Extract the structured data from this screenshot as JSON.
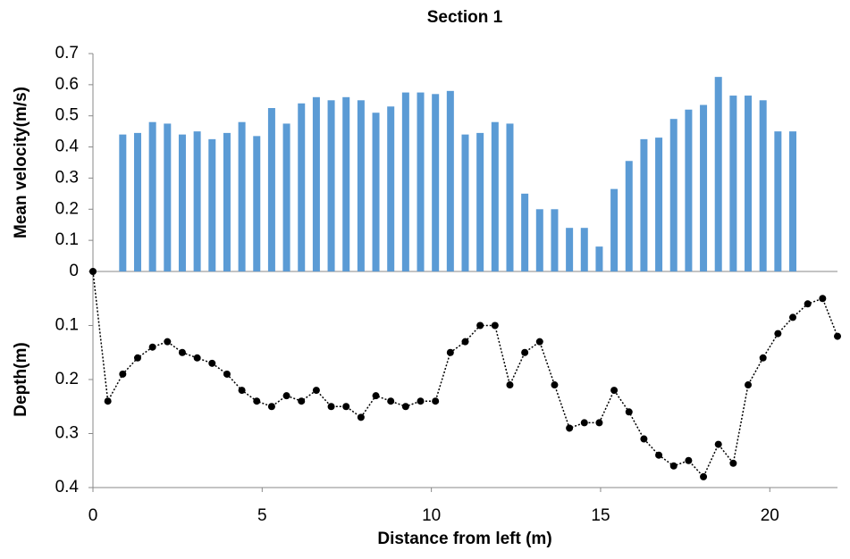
{
  "chart_data": [
    {
      "type": "bar",
      "title": "Section  1",
      "y_label": "Mean velocity(m/s)",
      "color": "#5b9bd5",
      "x": [
        0.88,
        1.32,
        1.76,
        2.2,
        2.64,
        3.08,
        3.52,
        3.96,
        4.4,
        4.84,
        5.28,
        5.72,
        6.16,
        6.6,
        7.04,
        7.48,
        7.92,
        8.36,
        8.8,
        9.24,
        9.68,
        10.12,
        10.56,
        11.0,
        11.44,
        11.88,
        12.32,
        12.76,
        13.2,
        13.64,
        14.08,
        14.52,
        14.96,
        15.4,
        15.84,
        16.28,
        16.72,
        17.16,
        17.6,
        18.04,
        18.48,
        18.92,
        19.36,
        19.8,
        20.24,
        20.68
      ],
      "values": [
        0.44,
        0.445,
        0.48,
        0.475,
        0.44,
        0.45,
        0.425,
        0.445,
        0.48,
        0.435,
        0.525,
        0.475,
        0.54,
        0.56,
        0.55,
        0.56,
        0.55,
        0.51,
        0.53,
        0.575,
        0.575,
        0.57,
        0.58,
        0.44,
        0.445,
        0.48,
        0.475,
        0.25,
        0.2,
        0.2,
        0.14,
        0.14,
        0.08,
        0.265,
        0.355,
        0.425,
        0.43,
        0.49,
        0.52,
        0.535,
        0.625,
        0.565,
        0.565,
        0.55,
        0.45,
        0.45
      ],
      "xlim": [
        0,
        22
      ],
      "ylim": [
        0,
        0.7
      ],
      "yticks": [
        0,
        0.1,
        0.2,
        0.3,
        0.4,
        0.5,
        0.6,
        0.7
      ]
    },
    {
      "type": "line",
      "y_label": "Depth(m)",
      "x_label": "Distance from left (m)",
      "color": "#000000",
      "inverted": true,
      "x": [
        0,
        0.44,
        0.88,
        1.32,
        1.76,
        2.2,
        2.64,
        3.08,
        3.52,
        3.96,
        4.4,
        4.84,
        5.28,
        5.72,
        6.16,
        6.6,
        7.04,
        7.48,
        7.92,
        8.36,
        8.8,
        9.24,
        9.68,
        10.12,
        10.56,
        11.0,
        11.44,
        11.88,
        12.32,
        12.76,
        13.2,
        13.64,
        14.08,
        14.52,
        14.96,
        15.4,
        15.84,
        16.28,
        16.72,
        17.16,
        17.6,
        18.04,
        18.48,
        18.92,
        19.36,
        19.8,
        20.24,
        20.68,
        21.12,
        21.56,
        22.0
      ],
      "values": [
        0,
        0.24,
        0.19,
        0.16,
        0.14,
        0.13,
        0.15,
        0.16,
        0.17,
        0.19,
        0.22,
        0.24,
        0.25,
        0.23,
        0.24,
        0.22,
        0.25,
        0.25,
        0.27,
        0.23,
        0.24,
        0.25,
        0.24,
        0.24,
        0.15,
        0.13,
        0.1,
        0.1,
        0.21,
        0.15,
        0.13,
        0.21,
        0.29,
        0.28,
        0.28,
        0.22,
        0.26,
        0.31,
        0.34,
        0.36,
        0.35,
        0.38,
        0.32,
        0.355,
        0.21,
        0.16,
        0.115,
        0.085,
        0.06,
        0.05,
        0.12
      ],
      "xlim": [
        0,
        22
      ],
      "xticks": [
        0,
        5,
        10,
        15,
        20
      ],
      "ylim": [
        0,
        0.4
      ],
      "yticks": [
        0.1,
        0.2,
        0.3,
        0.4
      ]
    }
  ]
}
